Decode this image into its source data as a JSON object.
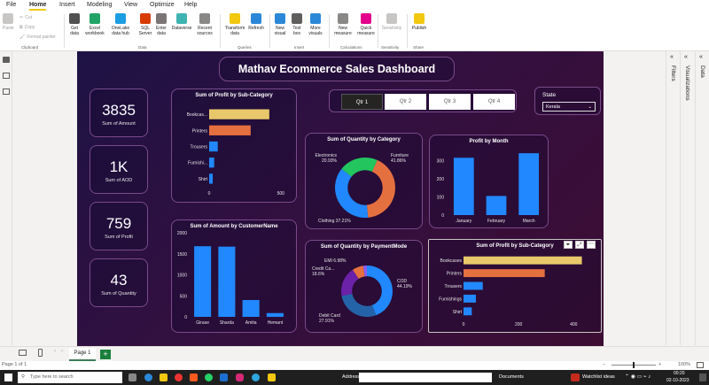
{
  "menu": {
    "items": [
      "File",
      "Home",
      "Insert",
      "Modeling",
      "View",
      "Optimize",
      "Help"
    ]
  },
  "ribbon": {
    "paste": "Paste",
    "cut": "Cut",
    "copy": "Copy",
    "format_painter": "Format painter",
    "get_data": "Get data",
    "excel": "Excel workbook",
    "onelake": "OneLake data hub",
    "sql": "SQL Server",
    "enter_data": "Enter data",
    "dataverse": "Dataverse",
    "recent": "Recent sources",
    "transform": "Transform data",
    "refresh": "Refresh",
    "new_visual": "New visual",
    "text_box": "Text box",
    "more_visuals": "More visuals",
    "new_measure": "New measure",
    "quick_measure": "Quick measure",
    "sensitivity": "Sensitivity",
    "publish": "Publish",
    "groups": {
      "clipboard": "Clipboard",
      "data": "Data",
      "queries": "Queries",
      "insert": "Insert",
      "calculations": "Calculations",
      "sensitivity": "Sensitivity",
      "share": "Share"
    }
  },
  "panes": {
    "filters": "Filters",
    "visualizations": "Visualizations",
    "data": "Data"
  },
  "dashboard": {
    "title": "Mathav Ecommerce Sales Dashboard",
    "kpis": [
      {
        "value": "3835",
        "label": "Sum of Amount"
      },
      {
        "value": "1K",
        "label": "Sum of AOD"
      },
      {
        "value": "759",
        "label": "Sum of Profit"
      },
      {
        "value": "43",
        "label": "Sum of Quantity"
      }
    ],
    "quarters": [
      "Qtr 1",
      "Qtr 2",
      "Qtr 3",
      "Qtr 4"
    ],
    "state": {
      "label": "State",
      "value": "Kerala"
    }
  },
  "chart_data": [
    {
      "type": "bar",
      "title": "Sum of Profit by Sub-Category",
      "categories": [
        "Bookcas...",
        "Printers",
        "Trousers",
        "Furnishi...",
        "Shirt"
      ],
      "values": [
        420,
        290,
        60,
        35,
        25
      ],
      "xticks": [
        "0",
        "500"
      ],
      "xlim": [
        0,
        520
      ],
      "colors": [
        "#e8c86a",
        "#e5703f",
        "#2188ff",
        "#2188ff",
        "#2188ff"
      ]
    },
    {
      "type": "pie",
      "title": "Sum of Quantity by Category",
      "slices": [
        {
          "name": "Electronics",
          "pct": "20.93%",
          "value": 20.93,
          "color": "#22c55e"
        },
        {
          "name": "Furniture",
          "pct": "41.86%",
          "value": 41.86,
          "color": "#e5703f"
        },
        {
          "name": "Clothing",
          "pct": "37.21%",
          "value": 37.21,
          "color": "#2188ff"
        }
      ]
    },
    {
      "type": "bar",
      "title": "Profit by Month",
      "categories": [
        "January",
        "February",
        "March"
      ],
      "values": [
        315,
        105,
        340
      ],
      "yticks": [
        "0",
        "100",
        "200",
        "300"
      ],
      "ylim": [
        0,
        360
      ],
      "color": "#2188ff"
    },
    {
      "type": "bar",
      "title": "Sum of Amount by CustomerName",
      "categories": [
        "Girase",
        "Sharda",
        "Amita",
        "Hemant"
      ],
      "values": [
        1680,
        1670,
        400,
        90
      ],
      "yticks": [
        "0",
        "500",
        "1000",
        "1500",
        "2000"
      ],
      "ylim": [
        0,
        2000
      ],
      "color": "#2188ff"
    },
    {
      "type": "pie",
      "title": "Sum of Quantity by PaymentMode",
      "slices": [
        {
          "name": "COD",
          "pct": "44.19%",
          "value": 44.19,
          "color": "#2188ff"
        },
        {
          "name": "Debit Card",
          "pct": "27.91%",
          "value": 27.91,
          "color": "#2563a8"
        },
        {
          "name": "Credit Ca...",
          "pct": "18.6%",
          "value": 18.6,
          "color": "#6b21a8"
        },
        {
          "name": "EMI",
          "pct": "6.98%",
          "value": 6.98,
          "color": "#e5703f"
        },
        {
          "name": "",
          "pct": "",
          "value": 2.32,
          "color": "#8b5cf6"
        }
      ]
    },
    {
      "type": "bar",
      "title": "Sum of Profit by Sub-Category",
      "categories": [
        "Bookcases",
        "Printers",
        "Trousers",
        "Furnishings",
        "Shirt"
      ],
      "values": [
        430,
        295,
        70,
        45,
        30
      ],
      "xticks": [
        "0",
        "200",
        "400"
      ],
      "xlim": [
        0,
        470
      ],
      "colors": [
        "#e8c86a",
        "#e5703f",
        "#2188ff",
        "#2188ff",
        "#2188ff"
      ]
    }
  ],
  "pagebar": {
    "page": "Page 1"
  },
  "status": {
    "left": "Page 1 of 1",
    "zoom": "100%"
  },
  "taskbar": {
    "search": "Type here to search",
    "address": "Address",
    "documents": "Documents",
    "watchlist": "Watchlist ideas",
    "time": "00:20",
    "date": "02-10-2023"
  }
}
